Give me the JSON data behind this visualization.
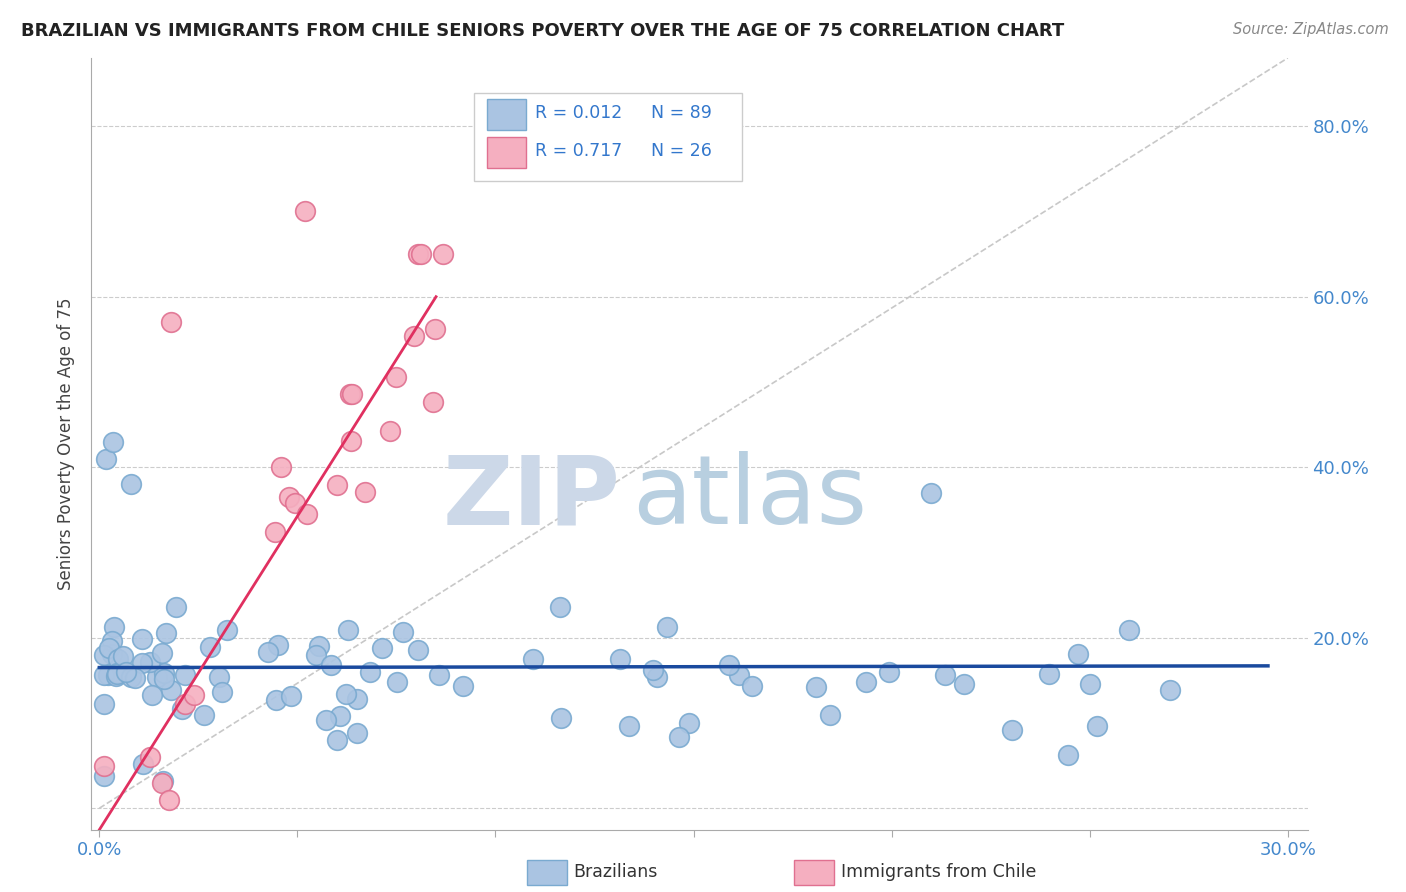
{
  "title": "BRAZILIAN VS IMMIGRANTS FROM CHILE SENIORS POVERTY OVER THE AGE OF 75 CORRELATION CHART",
  "source_text": "Source: ZipAtlas.com",
  "ylabel": "Seniors Poverty Over the Age of 75",
  "xlim": [
    -0.002,
    0.305
  ],
  "ylim": [
    -0.025,
    0.88
  ],
  "xtick_positions": [
    0.0,
    0.05,
    0.1,
    0.15,
    0.2,
    0.25,
    0.3
  ],
  "xticklabels": [
    "0.0%",
    "",
    "",
    "",
    "",
    "",
    "30.0%"
  ],
  "ytick_positions": [
    0.0,
    0.2,
    0.4,
    0.6,
    0.8
  ],
  "ytick_right_labels": [
    "",
    "20.0%",
    "40.0%",
    "60.0%",
    "80.0%"
  ],
  "legend_r1": "R = 0.012",
  "legend_n1": "N = 89",
  "legend_r2": "R = 0.717",
  "legend_n2": "N = 26",
  "blue_color": "#aac4e2",
  "blue_edge_color": "#7aaad0",
  "pink_color": "#f5afc0",
  "pink_edge_color": "#e07090",
  "blue_line_color": "#1a4a9e",
  "pink_line_color": "#e03060",
  "diag_color": "#c8c8c8",
  "grid_color": "#cccccc",
  "title_color": "#222222",
  "tick_label_color": "#4488cc",
  "legend_text_color": "#3377cc",
  "watermark_zip_color": "#ccd8e8",
  "watermark_atlas_color": "#b8cfe0",
  "bottom_label_color": "#333333",
  "source_color": "#888888"
}
